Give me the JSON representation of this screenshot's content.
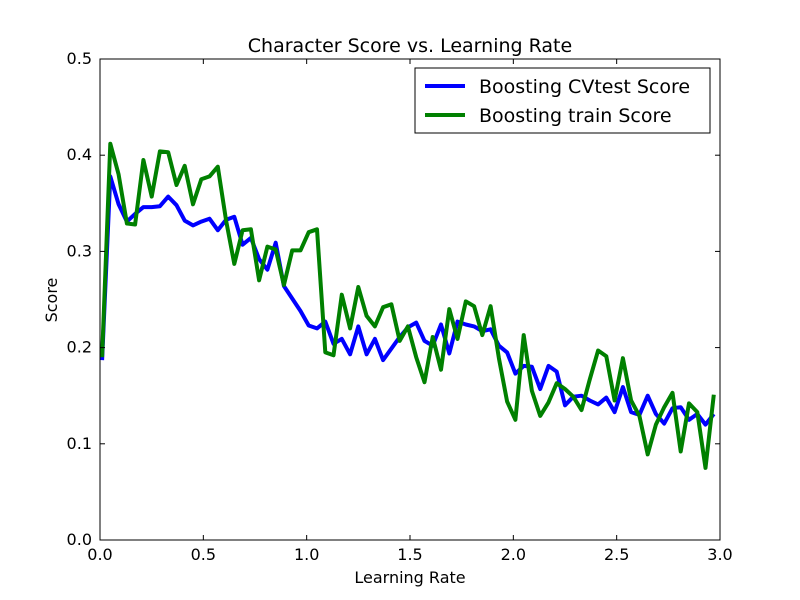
{
  "chart_data": {
    "type": "line",
    "title": "Character Score vs. Learning Rate",
    "xlabel": "Learning Rate",
    "ylabel": "Score",
    "xlim": [
      0.0,
      3.0
    ],
    "ylim": [
      0.0,
      0.5
    ],
    "xticks": [
      "0.0",
      "0.5",
      "1.0",
      "1.5",
      "2.0",
      "2.5",
      "3.0"
    ],
    "yticks": [
      "0.0",
      "0.1",
      "0.2",
      "0.3",
      "0.4",
      "0.5"
    ],
    "grid": false,
    "legend_position": "top-right",
    "x": [
      0.01,
      0.05,
      0.09,
      0.13,
      0.17,
      0.21,
      0.25,
      0.29,
      0.33,
      0.37,
      0.41,
      0.45,
      0.49,
      0.53,
      0.57,
      0.61,
      0.65,
      0.69,
      0.73,
      0.77,
      0.81,
      0.85,
      0.89,
      0.93,
      0.97,
      1.01,
      1.05,
      1.09,
      1.13,
      1.17,
      1.21,
      1.25,
      1.29,
      1.33,
      1.37,
      1.41,
      1.45,
      1.49,
      1.53,
      1.57,
      1.61,
      1.65,
      1.69,
      1.73,
      1.77,
      1.81,
      1.85,
      1.89,
      1.93,
      1.97,
      2.01,
      2.05,
      2.09,
      2.13,
      2.17,
      2.21,
      2.25,
      2.29,
      2.33,
      2.37,
      2.41,
      2.45,
      2.49,
      2.53,
      2.57,
      2.61,
      2.65,
      2.69,
      2.73,
      2.77,
      2.81,
      2.85,
      2.89,
      2.93,
      2.97
    ],
    "series": [
      {
        "name": "Boosting CVtest Score",
        "color": "#0000ff",
        "values": [
          0.187,
          0.378,
          0.349,
          0.331,
          0.339,
          0.346,
          0.346,
          0.347,
          0.357,
          0.348,
          0.332,
          0.327,
          0.331,
          0.334,
          0.322,
          0.333,
          0.336,
          0.307,
          0.314,
          0.292,
          0.281,
          0.309,
          0.264,
          0.251,
          0.238,
          0.223,
          0.22,
          0.227,
          0.204,
          0.209,
          0.193,
          0.222,
          0.193,
          0.209,
          0.187,
          0.199,
          0.211,
          0.221,
          0.226,
          0.207,
          0.202,
          0.224,
          0.194,
          0.227,
          0.224,
          0.222,
          0.217,
          0.219,
          0.202,
          0.195,
          0.173,
          0.181,
          0.18,
          0.157,
          0.181,
          0.175,
          0.14,
          0.149,
          0.15,
          0.145,
          0.141,
          0.148,
          0.133,
          0.159,
          0.133,
          0.13,
          0.15,
          0.131,
          0.121,
          0.137,
          0.138,
          0.125,
          0.131,
          0.12,
          0.131
        ]
      },
      {
        "name": "Boosting train Score",
        "color": "#008000",
        "values": [
          0.19,
          0.412,
          0.38,
          0.329,
          0.328,
          0.395,
          0.357,
          0.404,
          0.403,
          0.369,
          0.389,
          0.349,
          0.375,
          0.378,
          0.388,
          0.332,
          0.287,
          0.322,
          0.323,
          0.27,
          0.305,
          0.302,
          0.265,
          0.301,
          0.301,
          0.32,
          0.323,
          0.195,
          0.192,
          0.255,
          0.22,
          0.263,
          0.233,
          0.222,
          0.242,
          0.245,
          0.207,
          0.222,
          0.19,
          0.164,
          0.211,
          0.177,
          0.24,
          0.209,
          0.248,
          0.243,
          0.213,
          0.243,
          0.189,
          0.144,
          0.125,
          0.213,
          0.155,
          0.129,
          0.143,
          0.163,
          0.157,
          0.149,
          0.135,
          0.167,
          0.197,
          0.191,
          0.145,
          0.189,
          0.145,
          0.129,
          0.089,
          0.12,
          0.138,
          0.153,
          0.092,
          0.142,
          0.133,
          0.075,
          0.151
        ]
      }
    ]
  }
}
